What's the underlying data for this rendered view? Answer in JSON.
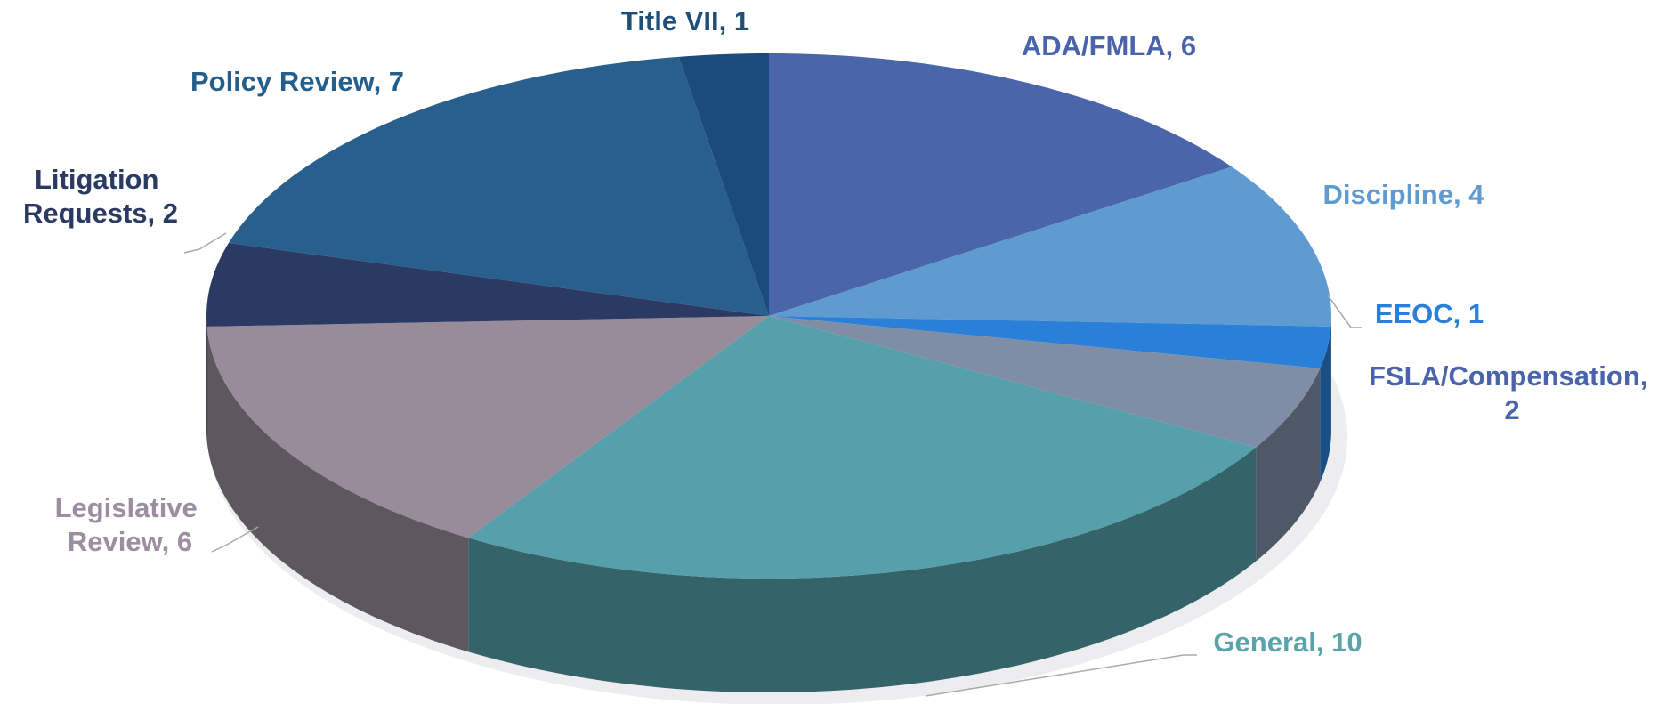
{
  "chart_data": {
    "type": "pie3d",
    "value_labels": [
      "ADA/FMLA, 6",
      "Discipline, 4",
      "EEOC, 1",
      "FSLA/Compensation, 2",
      "General, 10",
      "Legislative Review, 6",
      "Litigation Requests, 2",
      "Policy Review, 7",
      "Title VII, 1"
    ],
    "values": [
      6,
      4,
      1,
      2,
      10,
      6,
      2,
      7,
      1
    ],
    "colors": [
      "#4a65aa",
      "#5f9bd1",
      "#2a80d8",
      "#7f8ea6",
      "#56a0ab",
      "#988c9b",
      "#2b3a63",
      "#285f8c",
      "#1d4a7c"
    ],
    "label_colors": [
      "#4a63aa",
      "#5f9bd1",
      "#2a80d8",
      "#4a63aa",
      "#5aa3ab",
      "#9c8ea0",
      "#2b3a63",
      "#245f8c",
      "#1f4e79"
    ]
  }
}
